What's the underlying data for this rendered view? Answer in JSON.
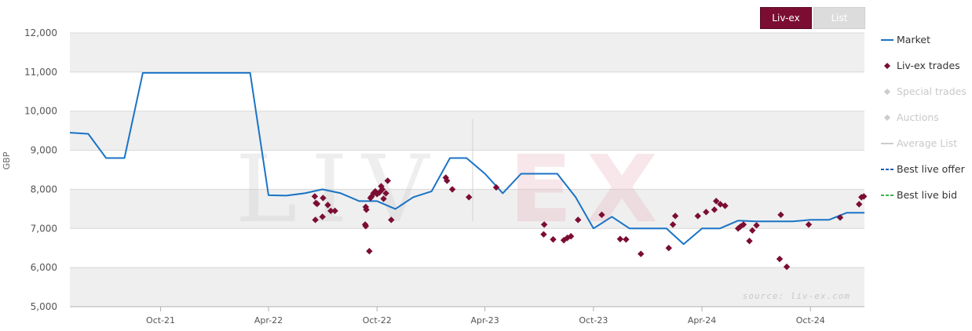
{
  "tabs": {
    "livex_label": "Liv-ex",
    "list_label": "List"
  },
  "watermark": {
    "left": "LIV",
    "right": "EX",
    "source": "source: liv-ex.com"
  },
  "legend": [
    {
      "label": "Market",
      "symbol": "line",
      "color": "#1a73c6",
      "active": true
    },
    {
      "label": "Liv-ex trades",
      "symbol": "diamond",
      "color": "#7b0d33",
      "active": true
    },
    {
      "label": "Special trades",
      "symbol": "diamond",
      "color": "#cccccc",
      "active": false
    },
    {
      "label": "Auctions",
      "symbol": "diamond",
      "color": "#cccccc",
      "active": false
    },
    {
      "label": "Average List",
      "symbol": "line",
      "color": "#cccccc",
      "active": false
    },
    {
      "label": "Best live offer",
      "symbol": "dash",
      "color": "#1a5fb4",
      "active": true
    },
    {
      "label": "Best live bid",
      "symbol": "dash",
      "color": "#3bb54a",
      "active": true
    }
  ],
  "chart_data": {
    "type": "line",
    "ylabel": "GBP",
    "ylim": [
      5000,
      12000
    ],
    "y_ticks": [
      "5,000",
      "6,000",
      "7,000",
      "8,000",
      "9,000",
      "10,000",
      "11,000",
      "12,000"
    ],
    "y_tick_values": [
      5000,
      6000,
      7000,
      8000,
      9000,
      10000,
      11000,
      12000
    ],
    "x_range": [
      "2021-05-01",
      "2024-12-31"
    ],
    "x_ticks": [
      {
        "label": "Oct-21",
        "date": "2021-10-01"
      },
      {
        "label": "Apr-22",
        "date": "2022-04-01"
      },
      {
        "label": "Oct-22",
        "date": "2022-10-01"
      },
      {
        "label": "Apr-23",
        "date": "2023-04-01"
      },
      {
        "label": "Oct-23",
        "date": "2023-10-01"
      },
      {
        "label": "Apr-24",
        "date": "2024-04-01"
      },
      {
        "label": "Oct-24",
        "date": "2024-10-01"
      }
    ],
    "series": [
      {
        "name": "Market",
        "kind": "line",
        "color": "#1a73c6",
        "points": [
          [
            "2021-05-01",
            9450
          ],
          [
            "2021-06-01",
            9420
          ],
          [
            "2021-07-01",
            8800
          ],
          [
            "2021-08-01",
            8800
          ],
          [
            "2021-09-01",
            10980
          ],
          [
            "2021-10-01",
            10980
          ],
          [
            "2021-11-01",
            10980
          ],
          [
            "2021-12-01",
            10980
          ],
          [
            "2022-01-01",
            10980
          ],
          [
            "2022-02-01",
            10980
          ],
          [
            "2022-03-01",
            10980
          ],
          [
            "2022-04-01",
            7850
          ],
          [
            "2022-05-01",
            7840
          ],
          [
            "2022-06-01",
            7900
          ],
          [
            "2022-07-01",
            8000
          ],
          [
            "2022-08-01",
            7900
          ],
          [
            "2022-09-01",
            7700
          ],
          [
            "2022-10-01",
            7700
          ],
          [
            "2022-11-01",
            7500
          ],
          [
            "2022-12-01",
            7800
          ],
          [
            "2023-01-01",
            7950
          ],
          [
            "2023-02-01",
            8800
          ],
          [
            "2023-03-01",
            8800
          ],
          [
            "2023-04-01",
            8400
          ],
          [
            "2023-05-01",
            7900
          ],
          [
            "2023-06-01",
            8400
          ],
          [
            "2023-07-01",
            8400
          ],
          [
            "2023-08-01",
            8400
          ],
          [
            "2023-09-01",
            7800
          ],
          [
            "2023-10-01",
            7000
          ],
          [
            "2023-11-01",
            7300
          ],
          [
            "2023-12-01",
            7000
          ],
          [
            "2024-01-01",
            7000
          ],
          [
            "2024-02-01",
            7000
          ],
          [
            "2024-03-01",
            6600
          ],
          [
            "2024-04-01",
            7000
          ],
          [
            "2024-05-01",
            7000
          ],
          [
            "2024-06-01",
            7200
          ],
          [
            "2024-07-01",
            7180
          ],
          [
            "2024-08-01",
            7180
          ],
          [
            "2024-09-01",
            7180
          ],
          [
            "2024-10-01",
            7220
          ],
          [
            "2024-11-01",
            7220
          ],
          [
            "2024-12-01",
            7400
          ],
          [
            "2024-12-31",
            7400
          ]
        ]
      },
      {
        "name": "Liv-ex trades",
        "kind": "scatter",
        "color": "#7b0d33",
        "points": [
          [
            "2022-06-18",
            7820
          ],
          [
            "2022-06-20",
            7650
          ],
          [
            "2022-06-22",
            7630
          ],
          [
            "2022-06-19",
            7220
          ],
          [
            "2022-07-02",
            7780
          ],
          [
            "2022-07-01",
            7300
          ],
          [
            "2022-07-10",
            7600
          ],
          [
            "2022-07-15",
            7450
          ],
          [
            "2022-07-22",
            7450
          ],
          [
            "2022-09-12",
            7550
          ],
          [
            "2022-09-13",
            7480
          ],
          [
            "2022-09-11",
            7100
          ],
          [
            "2022-09-12",
            7060
          ],
          [
            "2022-09-18",
            6420
          ],
          [
            "2022-09-20",
            7780
          ],
          [
            "2022-09-22",
            7820
          ],
          [
            "2022-09-25",
            7900
          ],
          [
            "2022-09-28",
            7950
          ],
          [
            "2022-10-01",
            7880
          ],
          [
            "2022-10-05",
            7920
          ],
          [
            "2022-10-08",
            8080
          ],
          [
            "2022-10-10",
            8000
          ],
          [
            "2022-10-12",
            7760
          ],
          [
            "2022-10-16",
            7900
          ],
          [
            "2022-10-19",
            8220
          ],
          [
            "2022-10-25",
            7220
          ],
          [
            "2023-01-25",
            8300
          ],
          [
            "2023-01-27",
            8220
          ],
          [
            "2023-02-05",
            8000
          ],
          [
            "2023-03-05",
            7800
          ],
          [
            "2023-04-20",
            8050
          ],
          [
            "2023-07-10",
            7100
          ],
          [
            "2023-07-09",
            6850
          ],
          [
            "2023-07-25",
            6720
          ],
          [
            "2023-08-12",
            6700
          ],
          [
            "2023-08-18",
            6760
          ],
          [
            "2023-08-24",
            6800
          ],
          [
            "2023-09-05",
            7220
          ],
          [
            "2023-10-15",
            7350
          ],
          [
            "2023-11-15",
            6730
          ],
          [
            "2023-11-25",
            6720
          ],
          [
            "2023-12-20",
            6350
          ],
          [
            "2024-02-05",
            6500
          ],
          [
            "2024-02-12",
            7100
          ],
          [
            "2024-02-16",
            7320
          ],
          [
            "2024-03-25",
            7320
          ],
          [
            "2024-04-08",
            7420
          ],
          [
            "2024-04-22",
            7480
          ],
          [
            "2024-04-25",
            7700
          ],
          [
            "2024-05-02",
            7620
          ],
          [
            "2024-05-10",
            7580
          ],
          [
            "2024-06-01",
            7000
          ],
          [
            "2024-06-05",
            7050
          ],
          [
            "2024-06-10",
            7100
          ],
          [
            "2024-06-20",
            6680
          ],
          [
            "2024-06-25",
            6950
          ],
          [
            "2024-07-02",
            7080
          ],
          [
            "2024-08-10",
            6220
          ],
          [
            "2024-08-12",
            7350
          ],
          [
            "2024-08-22",
            6020
          ],
          [
            "2024-09-28",
            7100
          ],
          [
            "2024-11-20",
            7280
          ],
          [
            "2024-12-22",
            7620
          ],
          [
            "2024-12-26",
            7800
          ],
          [
            "2024-12-30",
            7820
          ]
        ]
      }
    ]
  }
}
